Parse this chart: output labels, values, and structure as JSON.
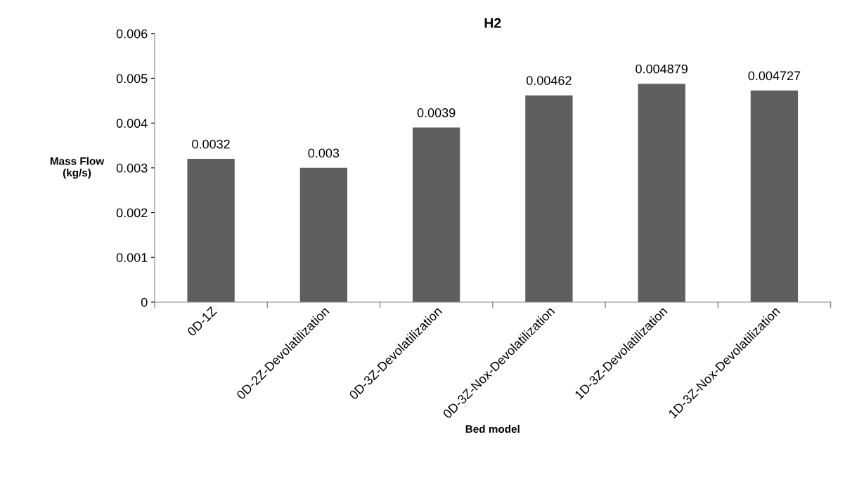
{
  "chart_data": {
    "type": "bar",
    "title": "H2",
    "xlabel": "Bed model",
    "ylabel": "Mass Flow\n(kg/s)",
    "categories": [
      "0D-1Z",
      "0D-2Z-Devolatilization",
      "0D-3Z-Devolatilization",
      "0D-3Z-Nox-Devolatilization",
      "1D-3Z-Devolatilization",
      "1D-3Z-Nox-Devolatilization"
    ],
    "values": [
      0.0032,
      0.003,
      0.0039,
      0.00462,
      0.004879,
      0.004727
    ],
    "color": "#5f5f5f",
    "ylim": [
      0,
      0.006
    ],
    "yticks": [
      0,
      0.001,
      0.002,
      0.003,
      0.004,
      0.005,
      0.006
    ],
    "data_labels": true,
    "grid": false,
    "legend": false
  }
}
